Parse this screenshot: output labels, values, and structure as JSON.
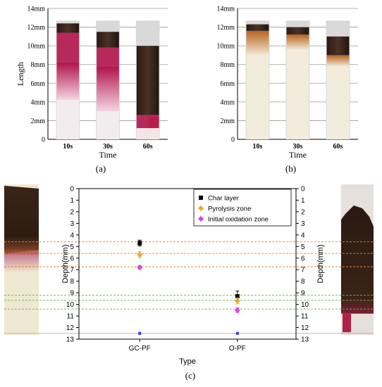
{
  "chart_data": [
    {
      "panel": "(a)",
      "type": "bar",
      "ylabel": "Length",
      "xlabel": "Time",
      "ylim": [
        0,
        14
      ],
      "yticks": [
        "0",
        "2mm",
        "4mm",
        "6mm",
        "8mm",
        "10mm",
        "12mm",
        "14mm"
      ],
      "categories": [
        "10s",
        "30s",
        "60s"
      ],
      "grid": true,
      "samples": [
        {
          "time": "10s",
          "length": 12.4,
          "char_bottom": 11.4,
          "pyrolysis_bottom": 8.2,
          "oxidation_bottom": 4.2
        },
        {
          "time": "30s",
          "length": 11.5,
          "char_bottom": 9.8,
          "pyrolysis_bottom": 7.8,
          "oxidation_bottom": 3.0
        },
        {
          "time": "60s",
          "length": 10.0,
          "char_bottom": 2.6,
          "pyrolysis_bottom": 1.2,
          "oxidation_bottom": 0.8
        }
      ]
    },
    {
      "panel": "(b)",
      "type": "bar",
      "xlabel": "Time",
      "ylim": [
        0,
        14
      ],
      "yticks": [
        "0",
        "2mm",
        "4mm",
        "6mm",
        "8mm",
        "10mm",
        "12mm",
        "14mm"
      ],
      "categories": [
        "10s",
        "30s",
        "60s"
      ],
      "grid": true,
      "samples": [
        {
          "time": "10s",
          "length": 12.3,
          "char_bottom": 11.6,
          "pyrolysis_bottom": 9.0
        },
        {
          "time": "30s",
          "length": 12.0,
          "char_bottom": 11.2,
          "pyrolysis_bottom": 9.6
        },
        {
          "time": "60s",
          "length": 11.0,
          "char_bottom": 9.0,
          "pyrolysis_bottom": 7.8
        }
      ]
    },
    {
      "panel": "(c)",
      "type": "scatter",
      "xlabel": "Type",
      "ylabel": "Depth(mm)",
      "ylabel_right": "Depth(mm)",
      "ylim": [
        13,
        0
      ],
      "yticks": [
        "0",
        "1",
        "2",
        "3",
        "4",
        "5",
        "6",
        "7",
        "8",
        "9",
        "10",
        "11",
        "12",
        "13"
      ],
      "categories": [
        "GC-PF",
        "O-PF"
      ],
      "legend_position": "top-right",
      "series": [
        {
          "name": "Char layer",
          "color": "#000000",
          "marker": "square",
          "values": [
            4.7,
            9.3
          ],
          "errors": [
            0.25,
            0.45
          ]
        },
        {
          "name": "Pyrolysis zone",
          "color": "#f5a623",
          "marker": "diamond",
          "values": [
            5.7,
            9.7
          ],
          "errors": [
            0.25,
            0.25
          ]
        },
        {
          "name": "Initial oxidation zone",
          "color": "#e040e0",
          "marker": "diamond",
          "values": [
            6.8,
            10.5
          ],
          "errors": [
            0.15,
            0.2
          ]
        }
      ],
      "baseline": {
        "color": "#3333ff",
        "value": 12.5
      },
      "guides_left": {
        "color": "#f08030",
        "values": [
          4.6,
          5.6,
          6.75
        ]
      },
      "guides_right": {
        "color": "#66bb44",
        "values": [
          9.2,
          9.65,
          10.4
        ]
      }
    }
  ]
}
